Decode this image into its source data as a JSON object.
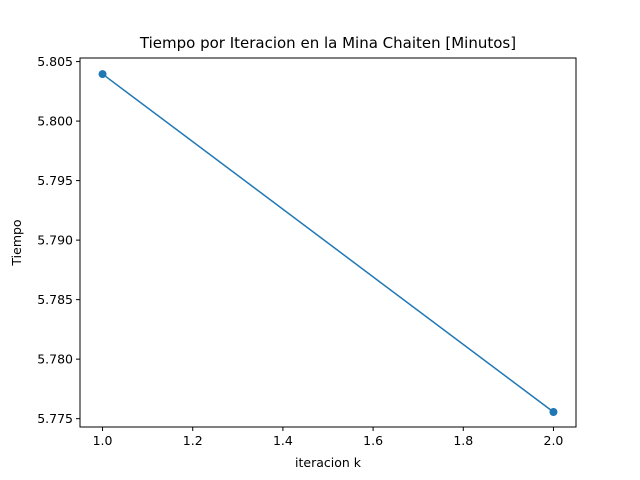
{
  "chart_data": {
    "type": "line",
    "title": "Tiempo por Iteracion en la Mina Chaiten [Minutos]",
    "xlabel": "iteracion k",
    "ylabel": "Tiempo",
    "x": [
      1.0,
      2.0
    ],
    "series": [
      {
        "values": [
          5.80395,
          5.77556
        ],
        "color": "#1f77b4",
        "marker": "circle"
      }
    ],
    "xlim": [
      0.95,
      2.05
    ],
    "ylim": [
      5.7743,
      5.8053
    ],
    "x_ticks": [
      1.0,
      1.2,
      1.4,
      1.6,
      1.8,
      2.0
    ],
    "x_tick_labels": [
      "1.0",
      "1.2",
      "1.4",
      "1.6",
      "1.8",
      "2.0"
    ],
    "y_ticks": [
      5.775,
      5.78,
      5.785,
      5.79,
      5.795,
      5.8,
      5.805
    ],
    "y_tick_labels": [
      "5.775",
      "5.780",
      "5.785",
      "5.790",
      "5.795",
      "5.800",
      "5.805"
    ],
    "grid": false,
    "legend": "none"
  }
}
